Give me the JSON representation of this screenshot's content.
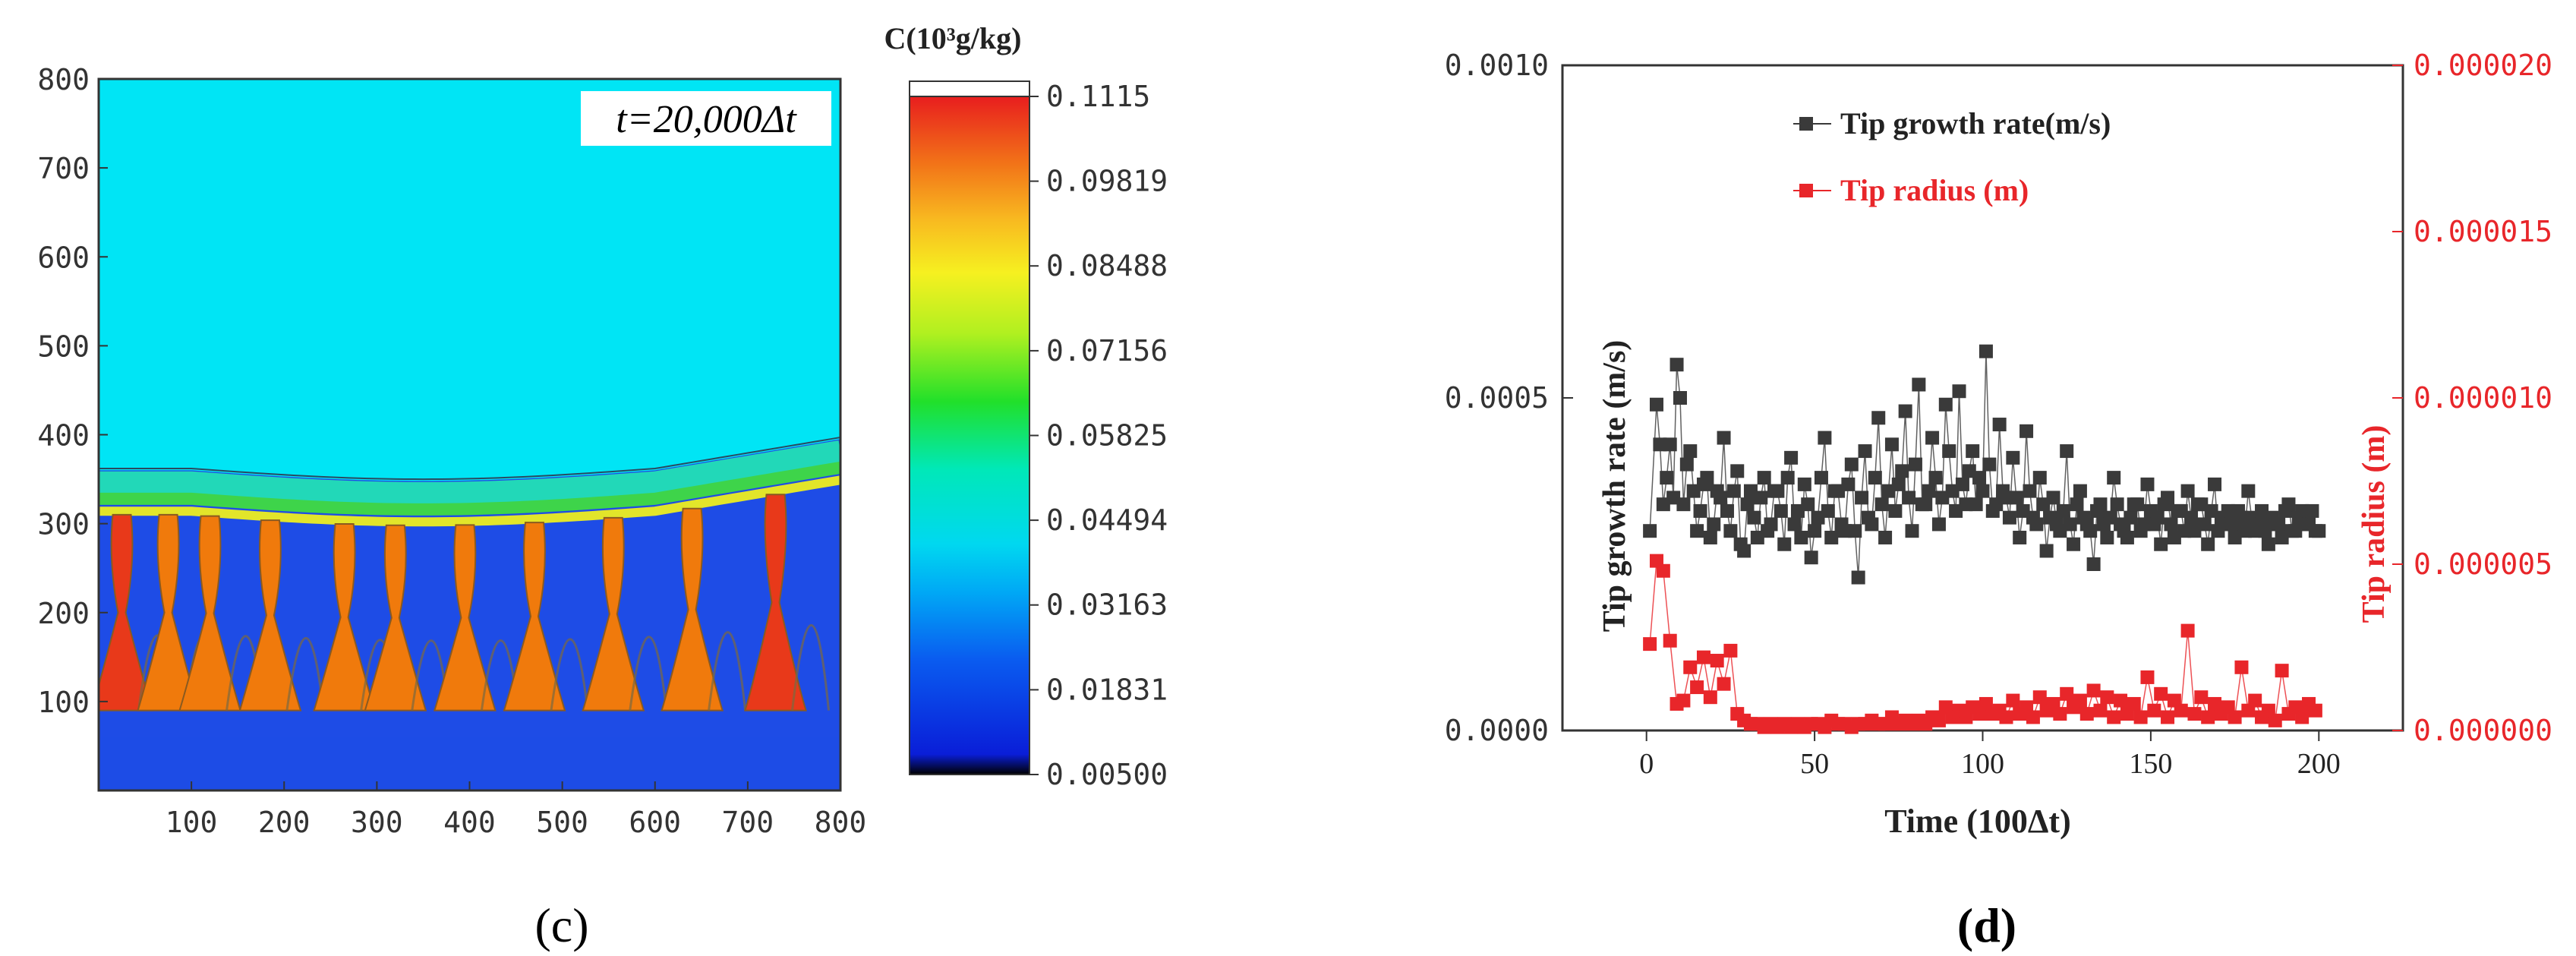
{
  "chart_data": [
    {
      "type": "heatmap",
      "panel_label": "(c)",
      "annotation": "t=20,000Δt",
      "x_ticks": [
        "100",
        "200",
        "300",
        "400",
        "500",
        "600",
        "700",
        "800"
      ],
      "y_ticks": [
        "800",
        "700",
        "600",
        "500",
        "400",
        "300",
        "200",
        "100"
      ],
      "xlim": [
        0,
        800
      ],
      "ylim": [
        0,
        800
      ],
      "colorbar": {
        "title": "C(10³g/kg)",
        "tick_labels": [
          "0.1115",
          "0.09819",
          "0.08488",
          "0.07156",
          "0.05825",
          "0.04494",
          "0.03163",
          "0.01831",
          "0.00500"
        ],
        "min": 0.005,
        "max": 0.1115
      },
      "interface_height": 320,
      "dendrite_x": [
        25,
        75,
        120,
        185,
        265,
        320,
        395,
        470,
        555,
        640,
        730
      ],
      "colors": {
        "liquid": "#00e5f5",
        "solid": "#1e4ce6",
        "dendrite": "#f07a0c",
        "dendrite_hot": "#e8391a",
        "boundary_green": "#3ed44a",
        "boundary_yellow": "#e2e52a"
      }
    },
    {
      "type": "scatter",
      "panel_label": "(d)",
      "xlabel": "Time (100Δt)",
      "ylabel_left": "Tip growth rate (m/s)",
      "ylabel_right": "Tip radius (m)",
      "x_ticks": [
        "0",
        "50",
        "100",
        "150",
        "200"
      ],
      "xlim": [
        -25,
        225
      ],
      "y_left_ticks": [
        "0.0000",
        "0.0005",
        "0.0010"
      ],
      "y_left_lim": [
        0,
        0.001
      ],
      "y_right_ticks": [
        "0.000000",
        "0.000005",
        "0.000010",
        "0.000015",
        "0.000020"
      ],
      "y_right_lim": [
        0,
        2e-05
      ],
      "series": [
        {
          "name": "Tip growth rate(m/s)",
          "axis": "left",
          "color": "#3a3a3a",
          "x": [
            1,
            3,
            5,
            7,
            9,
            11,
            13,
            15,
            17,
            19,
            21,
            23,
            25,
            27,
            29,
            31,
            33,
            35,
            37,
            39,
            41,
            43,
            45,
            47,
            49,
            51,
            53,
            55,
            57,
            59,
            61,
            63,
            65,
            67,
            69,
            71,
            73,
            75,
            77,
            79,
            81,
            83,
            85,
            87,
            89,
            91,
            93,
            95,
            97,
            99,
            101,
            103,
            105,
            107,
            109,
            111,
            113,
            115,
            117,
            119,
            121,
            123,
            125,
            127,
            129,
            131,
            133,
            135,
            137,
            139,
            141,
            143,
            145,
            147,
            149,
            151,
            153,
            155,
            157,
            159,
            161,
            163,
            165,
            167,
            169,
            171,
            173,
            175,
            177,
            179,
            181,
            183,
            185,
            187,
            189,
            191,
            193,
            195,
            197,
            199
          ],
          "y": [
            0.0003,
            0.00049,
            0.00034,
            0.00043,
            0.00055,
            0.00034,
            0.00042,
            0.0003,
            0.00037,
            0.00029,
            0.00036,
            0.00044,
            0.0003,
            0.00039,
            0.00027,
            0.00036,
            0.00029,
            0.00038,
            0.00031,
            0.00036,
            0.00028,
            0.00041,
            0.00033,
            0.00037,
            0.00026,
            0.00032,
            0.00044,
            0.00029,
            0.00036,
            0.0003,
            0.0004,
            0.00023,
            0.00042,
            0.00031,
            0.00047,
            0.00029,
            0.00043,
            0.00037,
            0.00048,
            0.0003,
            0.00052,
            0.00034,
            0.00044,
            0.00031,
            0.00049,
            0.00036,
            0.00051,
            0.00034,
            0.00042,
            0.00038,
            0.00057,
            0.00033,
            0.00046,
            0.00035,
            0.00041,
            0.00029,
            0.00045,
            0.00032,
            0.00038,
            0.00027,
            0.00035,
            0.0003,
            0.00042,
            0.00028,
            0.00036,
            0.00031,
            0.00025,
            0.00034,
            0.00029,
            0.00038,
            0.00031,
            0.00029,
            0.00034,
            0.0003,
            0.00037,
            0.00031,
            0.00028,
            0.00035,
            0.00029,
            0.00033,
            0.00036,
            0.0003,
            0.00034,
            0.00028,
            0.00037,
            0.00031,
            0.00033,
            0.00029,
            0.00032,
            0.00036,
            0.0003,
            0.00033,
            0.00028,
            0.00031,
            0.00029,
            0.00034,
            0.0003,
            0.00033,
            0.00031,
            0.0003
          ],
          "y_alt": [
            null,
            0.00043,
            0.00038,
            0.00035,
            0.0005,
            0.0004,
            0.00036,
            0.00033,
            0.00038,
            0.00031,
            0.00035,
            0.00033,
            0.00036,
            0.00028,
            0.00034,
            0.00032,
            0.00035,
            0.0003,
            0.00036,
            0.00033,
            0.00038,
            0.00031,
            0.00029,
            0.00034,
            0.0003,
            0.00038,
            0.00033,
            0.00036,
            0.00031,
            0.00037,
            0.0003,
            0.00035,
            0.00032,
            0.00038,
            0.00034,
            0.00036,
            0.00033,
            0.00039,
            0.00035,
            0.0004,
            0.00034,
            0.00036,
            0.00038,
            0.00035,
            0.00042,
            0.00033,
            0.00037,
            0.00039,
            0.00034,
            0.00036,
            0.0004,
            0.00034,
            0.00036,
            0.00032,
            0.00035,
            0.00033,
            0.00036,
            0.00031,
            0.00034,
            0.00032,
            0.00031,
            0.00033,
            0.00031,
            0.00034,
            0.00032,
            0.0003,
            0.00033,
            0.00031,
            0.00032,
            0.00034,
            0.0003,
            0.00032,
            0.00034,
            0.00031,
            0.00033,
            0.00032,
            0.00034,
            0.00031,
            0.00033,
            0.0003,
            0.00032,
            0.00034,
            0.00031,
            0.00033,
            0.0003,
            0.00032,
            0.00031,
            0.00033,
            0.0003,
            0.00032,
            0.00031,
            0.0003,
            0.00032,
            0.00031,
            0.00033,
            0.0003,
            0.00032,
            0.00031,
            0.00033,
            0.0003
          ]
        },
        {
          "name": "Tip radius (m)",
          "axis": "right",
          "color": "#e8262a",
          "x": [
            1,
            3,
            5,
            7,
            9,
            11,
            13,
            15,
            17,
            19,
            21,
            23,
            25,
            27,
            29,
            31,
            33,
            35,
            37,
            39,
            41,
            43,
            45,
            47,
            49,
            51,
            53,
            55,
            57,
            59,
            61,
            63,
            65,
            67,
            69,
            71,
            73,
            75,
            77,
            79,
            81,
            83,
            85,
            87,
            89,
            91,
            93,
            95,
            97,
            99,
            101,
            103,
            105,
            107,
            109,
            111,
            113,
            115,
            117,
            119,
            121,
            123,
            125,
            127,
            129,
            131,
            133,
            135,
            137,
            139,
            141,
            143,
            145,
            147,
            149,
            151,
            153,
            155,
            157,
            159,
            161,
            163,
            165,
            167,
            169,
            171,
            173,
            175,
            177,
            179,
            181,
            183,
            185,
            187,
            189,
            191,
            193,
            195,
            197,
            199
          ],
          "y": [
            2.6e-06,
            5.1e-06,
            4.8e-06,
            2.7e-06,
            8e-07,
            9e-07,
            1.9e-06,
            1.3e-06,
            2.2e-06,
            1e-06,
            2.1e-06,
            1.4e-06,
            2.4e-06,
            5e-07,
            3e-07,
            2e-07,
            2e-07,
            1e-07,
            2e-07,
            1e-07,
            2e-07,
            1e-07,
            2e-07,
            1e-07,
            2e-07,
            2e-07,
            1e-07,
            3e-07,
            2e-07,
            2e-07,
            1e-07,
            2e-07,
            2e-07,
            3e-07,
            2e-07,
            2e-07,
            4e-07,
            2e-07,
            3e-07,
            2e-07,
            3e-07,
            2e-07,
            4e-07,
            3e-07,
            7e-07,
            4e-07,
            6e-07,
            4e-07,
            7e-07,
            5e-07,
            8e-07,
            5e-07,
            6e-07,
            4e-07,
            9e-07,
            5e-07,
            7e-07,
            4e-07,
            1e-06,
            6e-07,
            8e-07,
            5e-07,
            1.1e-06,
            7e-07,
            9e-07,
            5e-07,
            1.2e-06,
            6e-07,
            1e-06,
            4e-07,
            9e-07,
            5e-07,
            8e-07,
            4e-07,
            1.6e-06,
            6e-07,
            1.1e-06,
            4e-07,
            9e-07,
            6e-07,
            3e-06,
            5e-07,
            1e-06,
            4e-07,
            8e-07,
            5e-07,
            7e-07,
            4e-07,
            1.9e-06,
            6e-07,
            9e-07,
            4e-07,
            6e-07,
            3e-07,
            1.8e-06,
            5e-07,
            7e-07,
            4e-07,
            8e-07,
            6e-07
          ]
        }
      ]
    }
  ]
}
